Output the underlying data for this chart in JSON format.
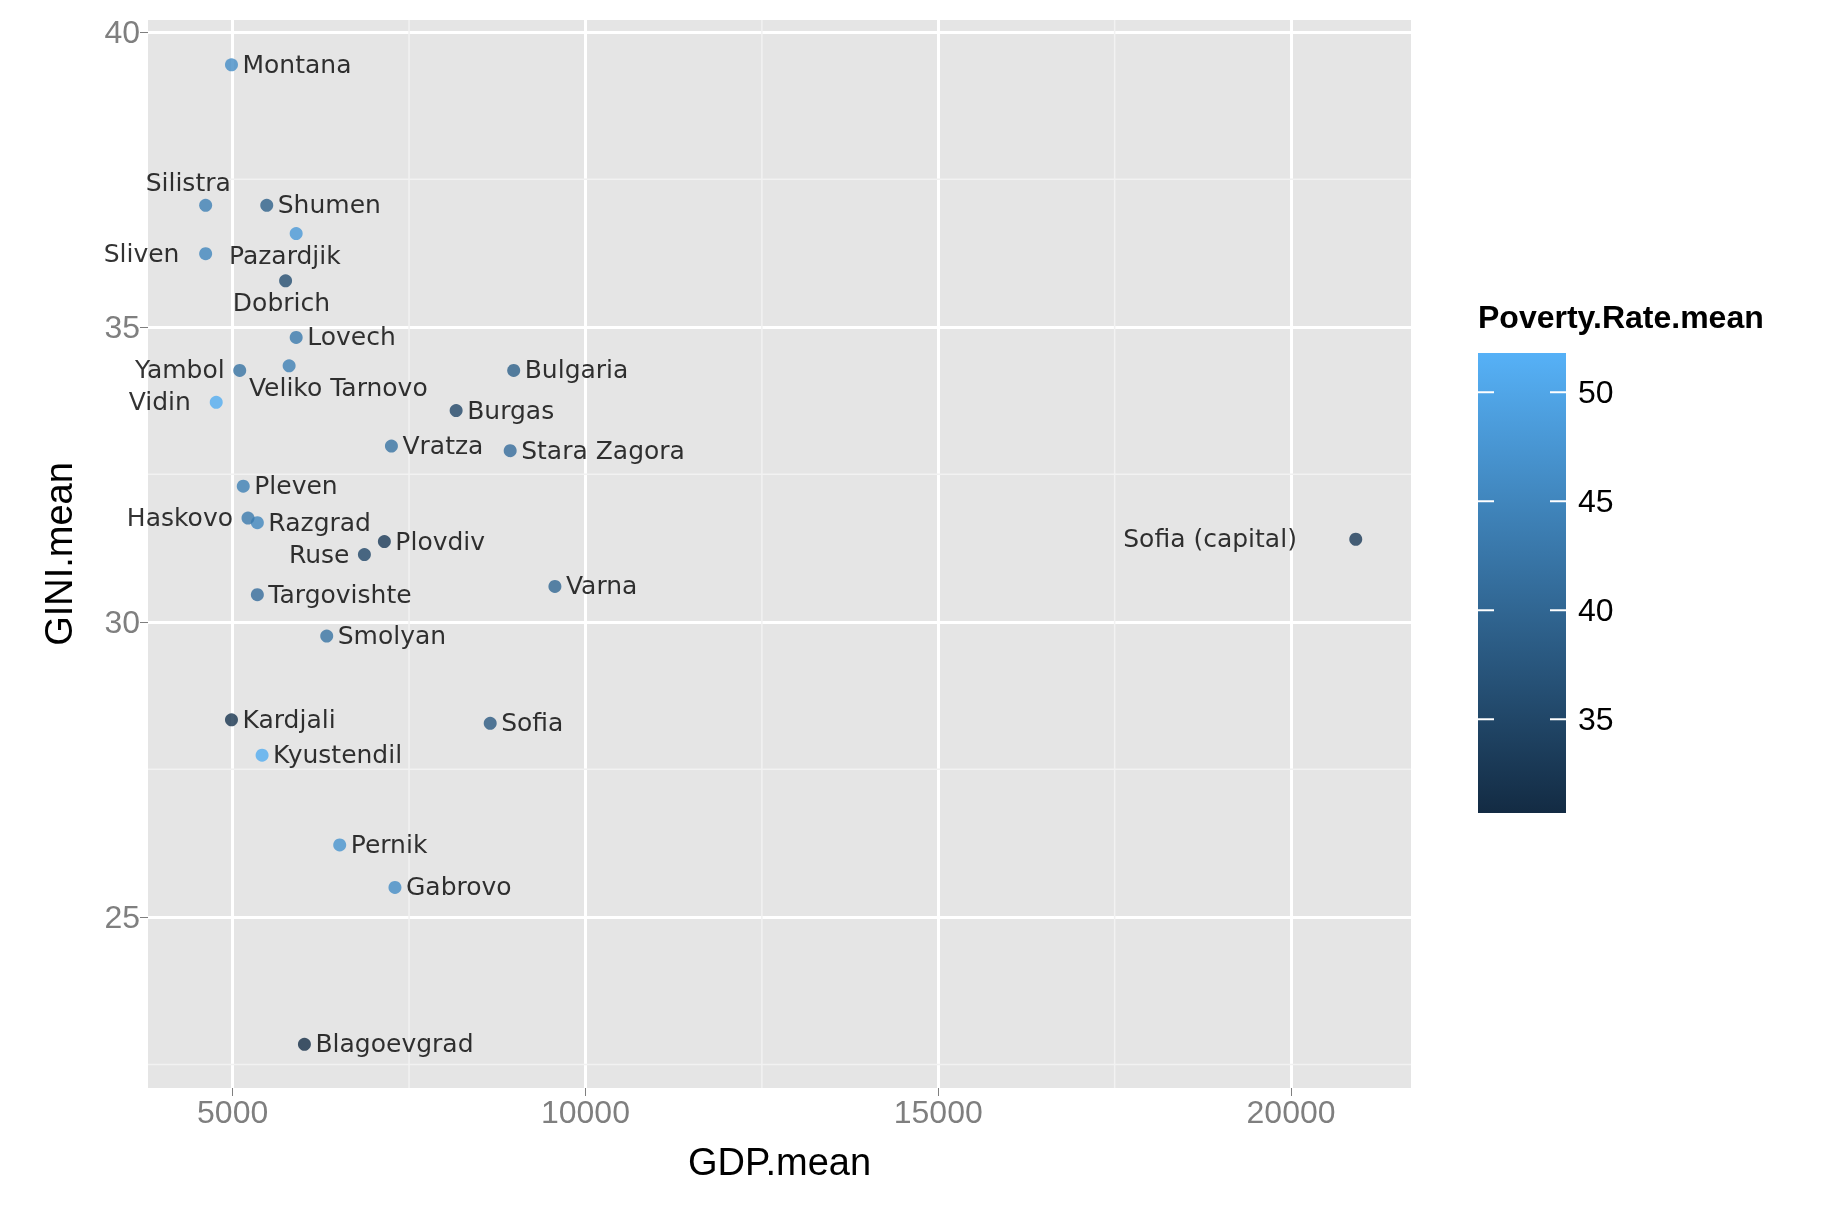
{
  "chart_data": {
    "type": "scatter",
    "xlabel": "GDP.mean",
    "ylabel": "GINI.mean",
    "clabel": "Poverty.Rate.mean",
    "x": [
      4983,
      4617,
      5483,
      5900,
      4617,
      5750,
      5900,
      5100,
      5800,
      8983,
      4767,
      8167,
      7250,
      8933,
      5150,
      5350,
      5217,
      7150,
      6867,
      20917,
      9567,
      5350,
      6333,
      4983,
      8650,
      5417,
      6517,
      7300,
      6017
    ],
    "values": [
      39.44,
      37.06,
      37.06,
      36.58,
      36.24,
      35.78,
      34.82,
      34.26,
      34.34,
      34.26,
      33.72,
      33.58,
      32.98,
      32.9,
      32.3,
      31.68,
      31.76,
      31.36,
      31.14,
      31.4,
      30.6,
      30.46,
      29.76,
      28.34,
      28.28,
      27.74,
      26.22,
      25.5,
      22.84
    ],
    "cvalues": [
      46,
      44,
      39,
      48,
      45,
      36,
      43,
      42,
      44,
      39,
      51,
      35,
      42,
      41,
      44,
      45,
      43,
      33,
      35,
      33,
      40,
      41,
      42,
      32,
      38,
      51,
      47,
      46,
      31
    ],
    "clim": [
      30.7,
      51.8
    ],
    "cticks": [
      35,
      40,
      45,
      50
    ],
    "xlim": [
      3800,
      21700
    ],
    "xticks": [
      5000,
      10000,
      15000,
      20000
    ],
    "ylim": [
      22.1,
      40.2
    ],
    "yticks": [
      25,
      30,
      35,
      40
    ],
    "grid": true,
    "marker": "circle",
    "annotations": [
      {
        "text": "Montana",
        "x": 4983,
        "y": 39.44
      },
      {
        "text": "Silistra",
        "x": 4617,
        "y": 37.06
      },
      {
        "text": "Shumen",
        "x": 5483,
        "y": 37.06
      },
      {
        "text": "Pazardjik",
        "x": 5900,
        "y": 36.58
      },
      {
        "text": "Sliven",
        "x": 4617,
        "y": 36.24
      },
      {
        "text": "Dobrich",
        "x": 5750,
        "y": 35.78
      },
      {
        "text": "Lovech",
        "x": 5900,
        "y": 34.82
      },
      {
        "text": "Yambol",
        "x": 5100,
        "y": 34.26
      },
      {
        "text": "Veliko Tarnovo",
        "x": 5800,
        "y": 34.34
      },
      {
        "text": "Bulgaria",
        "x": 8983,
        "y": 34.26
      },
      {
        "text": "Vidin",
        "x": 4767,
        "y": 33.72
      },
      {
        "text": "Burgas",
        "x": 8167,
        "y": 33.58
      },
      {
        "text": "Vratza",
        "x": 7250,
        "y": 32.98
      },
      {
        "text": "Stara Zagora",
        "x": 8933,
        "y": 32.9
      },
      {
        "text": "Pleven",
        "x": 5150,
        "y": 32.3
      },
      {
        "text": "Razgrad",
        "x": 5350,
        "y": 31.68
      },
      {
        "text": "Haskovo",
        "x": 5217,
        "y": 31.76
      },
      {
        "text": "Plovdiv",
        "x": 7150,
        "y": 31.36
      },
      {
        "text": "Ruse",
        "x": 6867,
        "y": 31.14
      },
      {
        "text": "Sofia (capital)",
        "x": 20917,
        "y": 31.4
      },
      {
        "text": "Varna",
        "x": 9567,
        "y": 30.6
      },
      {
        "text": "Targovishte",
        "x": 5350,
        "y": 30.46
      },
      {
        "text": "Smolyan",
        "x": 6333,
        "y": 29.76
      },
      {
        "text": "Kardjali",
        "x": 4983,
        "y": 28.34
      },
      {
        "text": "Sofia",
        "x": 8650,
        "y": 28.28
      },
      {
        "text": "Kyustendil",
        "x": 5417,
        "y": 27.74
      },
      {
        "text": "Pernik",
        "x": 6517,
        "y": 26.22
      },
      {
        "text": "Gabrovo",
        "x": 7300,
        "y": 25.5
      },
      {
        "text": "Blagoevgrad",
        "x": 6017,
        "y": 22.84
      }
    ]
  }
}
